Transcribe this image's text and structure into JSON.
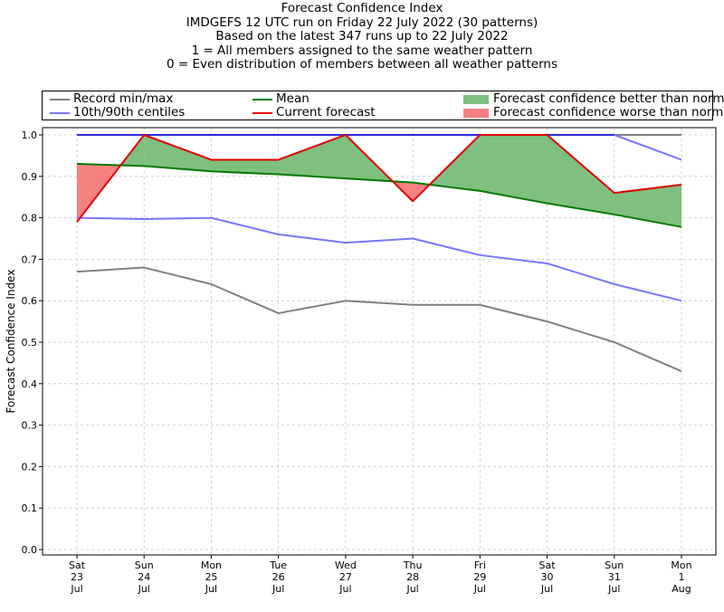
{
  "titles": [
    "Forecast Confidence Index",
    "IMDGEFS 12 UTC run on Friday 22 July 2022 (30 patterns)",
    "Based on the latest 347 runs up to 22 July 2022",
    "1 = All members assigned to the same weather pattern",
    "0 = Even distribution of members between all weather patterns"
  ],
  "legend": {
    "record": "Record min/max",
    "centiles": "10th/90th centiles",
    "mean": "Mean",
    "current": "Current forecast",
    "better": "Forecast confidence better than normal",
    "worse": "Forecast confidence worse than normal"
  },
  "colors": {
    "record": "#808080",
    "centiles": "#7777ff",
    "record_max": "#2b2bd9",
    "mean": "#007a00",
    "current": "#e00000",
    "better": "#7fbf7f",
    "worse": "#f78080"
  },
  "chart_data": {
    "type": "line",
    "ylabel": "Forecast Confidence Index",
    "ylim": [
      0.0,
      1.0
    ],
    "yticks": [
      "0.0",
      "0.1",
      "0.2",
      "0.3",
      "0.4",
      "0.5",
      "0.6",
      "0.7",
      "0.8",
      "0.9",
      "1.0"
    ],
    "categories": [
      [
        "Sat",
        "23",
        "Jul"
      ],
      [
        "Sun",
        "24",
        "Jul"
      ],
      [
        "Mon",
        "25",
        "Jul"
      ],
      [
        "Tue",
        "26",
        "Jul"
      ],
      [
        "Wed",
        "27",
        "Jul"
      ],
      [
        "Thu",
        "28",
        "Jul"
      ],
      [
        "Fri",
        "29",
        "Jul"
      ],
      [
        "Sat",
        "30",
        "Jul"
      ],
      [
        "Sun",
        "31",
        "Jul"
      ],
      [
        "Mon",
        "1",
        "Aug"
      ]
    ],
    "grid": true,
    "series": [
      {
        "name": "Record min/max",
        "role": "record_min",
        "values": [
          0.67,
          0.68,
          0.64,
          0.57,
          0.6,
          0.59,
          0.59,
          0.55,
          0.5,
          0.43
        ]
      },
      {
        "name": "Record min/max",
        "role": "record_max",
        "values": [
          1.0,
          1.0,
          1.0,
          1.0,
          1.0,
          1.0,
          1.0,
          1.0,
          1.0,
          1.0
        ]
      },
      {
        "name": "10th/90th centiles",
        "role": "p10",
        "values": [
          0.8,
          0.797,
          0.8,
          0.76,
          0.74,
          0.75,
          0.71,
          0.69,
          0.64,
          0.6
        ]
      },
      {
        "name": "10th/90th centiles",
        "role": "p90",
        "values": [
          1.0,
          1.0,
          1.0,
          1.0,
          1.0,
          1.0,
          1.0,
          1.0,
          1.0,
          0.94
        ]
      },
      {
        "name": "Mean",
        "role": "mean",
        "values": [
          0.93,
          0.925,
          0.912,
          0.905,
          0.895,
          0.885,
          0.865,
          0.835,
          0.808,
          0.778
        ]
      },
      {
        "name": "Current forecast",
        "role": "current",
        "values": [
          0.79,
          1.0,
          0.94,
          0.94,
          1.0,
          0.84,
          1.0,
          1.0,
          0.86,
          0.88
        ]
      }
    ]
  }
}
